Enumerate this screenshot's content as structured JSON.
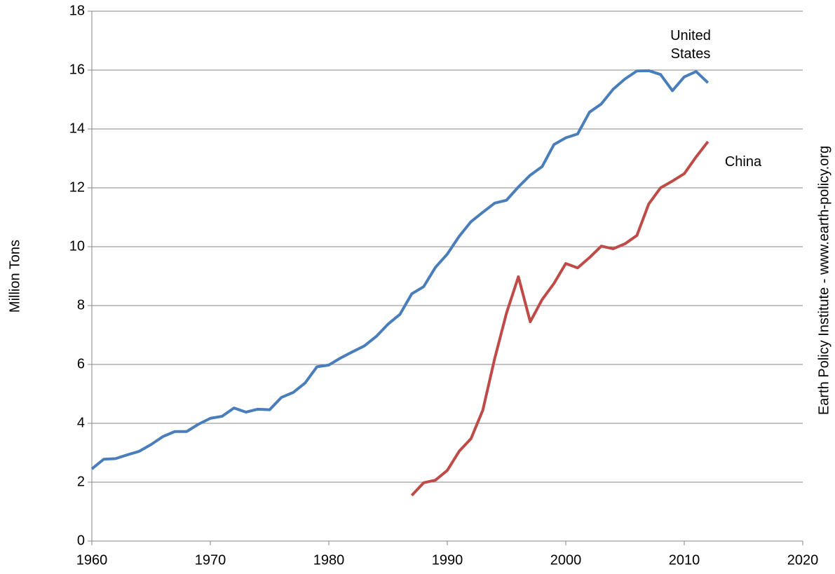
{
  "chart_data": {
    "type": "line",
    "y_label": "Million Tons",
    "source": "Earth Policy Institute - www.earth-policy.org",
    "xlim": [
      1960,
      2020
    ],
    "xticks": [
      1960,
      1970,
      1980,
      1990,
      2000,
      2010,
      2020
    ],
    "ylim": [
      0,
      18
    ],
    "yticks": [
      0,
      2,
      4,
      6,
      8,
      10,
      12,
      14,
      16,
      18
    ],
    "grid": true,
    "series": [
      {
        "name": "United States",
        "color": "#4a7ebb",
        "x": [
          1960,
          1961,
          1962,
          1963,
          1964,
          1965,
          1966,
          1967,
          1968,
          1969,
          1970,
          1971,
          1972,
          1973,
          1974,
          1975,
          1976,
          1977,
          1978,
          1979,
          1980,
          1981,
          1982,
          1983,
          1984,
          1985,
          1986,
          1987,
          1988,
          1989,
          1990,
          1991,
          1992,
          1993,
          1994,
          1995,
          1996,
          1997,
          1998,
          1999,
          2000,
          2001,
          2002,
          2003,
          2004,
          2005,
          2006,
          2007,
          2008,
          2009,
          2010,
          2011,
          2012
        ],
        "values": [
          2.45,
          2.78,
          2.8,
          2.93,
          3.05,
          3.28,
          3.55,
          3.72,
          3.72,
          3.97,
          4.17,
          4.24,
          4.52,
          4.38,
          4.48,
          4.46,
          4.88,
          5.05,
          5.37,
          5.92,
          5.98,
          6.22,
          6.43,
          6.63,
          6.95,
          7.37,
          7.7,
          8.4,
          8.64,
          9.3,
          9.75,
          10.35,
          10.85,
          11.17,
          11.48,
          11.58,
          12.03,
          12.43,
          12.72,
          13.47,
          13.7,
          13.83,
          14.57,
          14.85,
          15.35,
          15.7,
          15.97,
          15.98,
          15.85,
          15.3,
          15.77,
          15.95,
          15.57
        ]
      },
      {
        "name": "China",
        "color": "#be4b48",
        "x": [
          1987,
          1988,
          1989,
          1990,
          1991,
          1992,
          1993,
          1994,
          1995,
          1996,
          1997,
          1998,
          1999,
          2000,
          2001,
          2002,
          2003,
          2004,
          2005,
          2006,
          2007,
          2008,
          2009,
          2010,
          2011,
          2012
        ],
        "values": [
          1.55,
          1.98,
          2.07,
          2.4,
          3.05,
          3.48,
          4.45,
          6.2,
          7.75,
          8.98,
          7.45,
          8.2,
          8.75,
          9.43,
          9.28,
          9.63,
          10.02,
          9.93,
          10.1,
          10.38,
          11.45,
          12.0,
          12.23,
          12.48,
          13.05,
          13.57
        ]
      }
    ]
  }
}
